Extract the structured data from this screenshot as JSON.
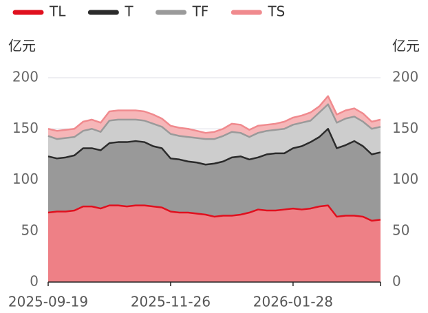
{
  "chart_data": {
    "type": "stacked_area",
    "y_label": "亿元",
    "y2_label": "亿元",
    "categories": [
      "2025-09-19",
      null,
      null,
      null,
      null,
      null,
      null,
      null,
      null,
      null,
      null,
      null,
      null,
      null,
      "2025-11-26",
      null,
      null,
      null,
      null,
      null,
      null,
      null,
      null,
      null,
      null,
      null,
      null,
      null,
      "2026-01-28",
      null,
      null,
      null,
      null,
      null,
      null,
      null,
      null,
      null,
      null
    ],
    "series": [
      {
        "name": "TL",
        "color": "#e0101e",
        "fill": "#ee8086",
        "values": [
          68,
          69,
          69,
          70,
          74,
          74,
          72,
          75,
          75,
          74,
          75,
          75,
          74,
          73,
          69,
          68,
          68,
          67,
          66,
          64,
          65,
          65,
          66,
          68,
          71,
          70,
          70,
          71,
          72,
          71,
          72,
          74,
          75,
          64,
          65,
          65,
          64,
          60,
          61
        ]
      },
      {
        "name": "T",
        "color": "#2b2b2b",
        "fill": "#999999",
        "values": [
          55,
          52,
          53,
          54,
          57,
          57,
          57,
          61,
          62,
          63,
          63,
          62,
          59,
          58,
          52,
          52,
          50,
          50,
          49,
          52,
          53,
          57,
          57,
          52,
          51,
          55,
          56,
          55,
          59,
          62,
          65,
          68,
          75,
          67,
          69,
          73,
          69,
          65,
          66
        ]
      },
      {
        "name": "TF",
        "color": "#9a9a9a",
        "fill": "#cdcdcd",
        "values": [
          20,
          19,
          19,
          18,
          17,
          19,
          18,
          22,
          22,
          22,
          21,
          21,
          22,
          21,
          24,
          23,
          24,
          24,
          25,
          24,
          25,
          25,
          23,
          22,
          24,
          23,
          23,
          24,
          23,
          23,
          21,
          24,
          24,
          25,
          26,
          24,
          24,
          25,
          25
        ]
      },
      {
        "name": "TS",
        "color": "#f08a8e",
        "fill": "#f6b6b8",
        "values": [
          7,
          8,
          8,
          8,
          9,
          9,
          9,
          9,
          9,
          9,
          9,
          9,
          9,
          8,
          8,
          8,
          8,
          7,
          6,
          7,
          7,
          8,
          8,
          7,
          7,
          6,
          6,
          7,
          7,
          7,
          8,
          6,
          8,
          8,
          8,
          8,
          8,
          7,
          7
        ]
      }
    ],
    "ylim": [
      0,
      200
    ],
    "yticks": [
      0,
      50,
      100,
      150,
      200
    ],
    "y2lim": [
      0,
      200
    ],
    "y2ticks": [
      0,
      50,
      100,
      150,
      200
    ],
    "grid": true,
    "legend": "top"
  }
}
